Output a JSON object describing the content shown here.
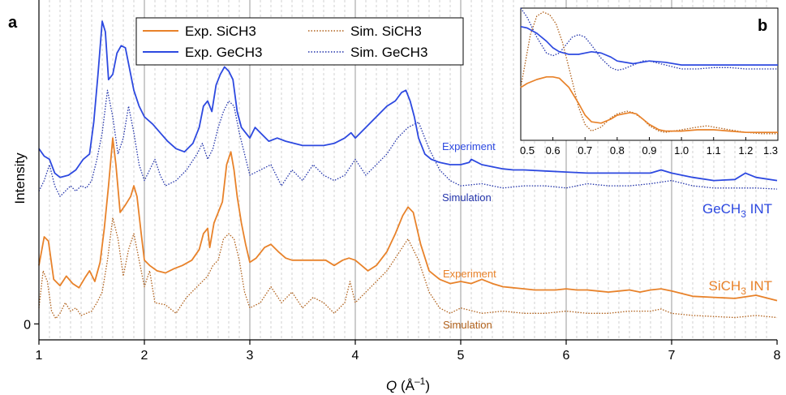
{
  "chart_data": [
    {
      "panel": "a",
      "type": "line",
      "xlabel": "Q (Å⁻¹)",
      "xlabel_main": "Q",
      "xlabel_unit": " (Å",
      "xlabel_exp": "–1",
      "xlabel_close": ")",
      "ylabel": "Intensity",
      "xlim": [
        1,
        8
      ],
      "ylim": [
        -0.15,
        3.05
      ],
      "x_ticks": [
        "1",
        "2",
        "3",
        "4",
        "5",
        "6",
        "7",
        "8"
      ],
      "y_ticks": [
        "0"
      ],
      "grid": "dashed vertical lines every 0.1 Å⁻¹; solid at 2, 3, 4, 5, 6, 7",
      "legend_position": "top-center",
      "series": [
        {
          "name": "Exp. SiCH3",
          "color": "#e8822a",
          "style": "solid",
          "x": [
            1.0,
            1.05,
            1.09,
            1.14,
            1.2,
            1.26,
            1.32,
            1.38,
            1.44,
            1.48,
            1.53,
            1.58,
            1.62,
            1.66,
            1.7,
            1.73,
            1.77,
            1.82,
            1.87,
            1.9,
            1.93,
            1.97,
            2.0,
            2.05,
            2.12,
            2.2,
            2.28,
            2.36,
            2.45,
            2.52,
            2.56,
            2.6,
            2.62,
            2.66,
            2.7,
            2.74,
            2.78,
            2.82,
            2.85,
            2.88,
            2.92,
            2.96,
            3.0,
            3.06,
            3.14,
            3.2,
            3.27,
            3.34,
            3.4,
            3.48,
            3.56,
            3.64,
            3.72,
            3.8,
            3.88,
            3.94,
            4.0,
            4.06,
            4.12,
            4.2,
            4.3,
            4.38,
            4.45,
            4.5,
            4.55,
            4.62,
            4.7,
            4.8,
            4.9,
            5.0,
            5.1,
            5.2,
            5.3,
            5.4,
            5.5,
            5.6,
            5.7,
            5.8,
            5.9,
            6.0,
            6.1,
            6.2,
            6.3,
            6.4,
            6.5,
            6.6,
            6.7,
            6.8,
            6.9,
            7.0,
            7.2,
            7.4,
            7.6,
            7.8,
            8.0
          ],
          "y": [
            0.55,
            0.82,
            0.78,
            0.42,
            0.36,
            0.45,
            0.38,
            0.34,
            0.44,
            0.5,
            0.4,
            0.58,
            0.9,
            1.3,
            1.75,
            1.5,
            1.05,
            1.12,
            1.2,
            1.3,
            1.2,
            0.85,
            0.6,
            0.55,
            0.5,
            0.48,
            0.52,
            0.55,
            0.6,
            0.7,
            0.85,
            0.9,
            0.72,
            0.95,
            1.05,
            1.15,
            1.5,
            1.62,
            1.45,
            1.2,
            0.95,
            0.75,
            0.58,
            0.62,
            0.72,
            0.75,
            0.68,
            0.62,
            0.6,
            0.6,
            0.6,
            0.6,
            0.6,
            0.55,
            0.6,
            0.62,
            0.6,
            0.55,
            0.5,
            0.55,
            0.68,
            0.85,
            1.02,
            1.1,
            1.05,
            0.75,
            0.5,
            0.42,
            0.38,
            0.4,
            0.38,
            0.42,
            0.38,
            0.35,
            0.34,
            0.33,
            0.32,
            0.32,
            0.32,
            0.33,
            0.32,
            0.32,
            0.31,
            0.3,
            0.31,
            0.32,
            0.3,
            0.32,
            0.33,
            0.31,
            0.26,
            0.25,
            0.24,
            0.27,
            0.22
          ]
        },
        {
          "name": "Exp. GeCH3",
          "color": "#2d49e0",
          "style": "solid",
          "x": [
            1.0,
            1.05,
            1.1,
            1.15,
            1.2,
            1.28,
            1.35,
            1.42,
            1.48,
            1.52,
            1.56,
            1.6,
            1.63,
            1.66,
            1.7,
            1.74,
            1.78,
            1.82,
            1.85,
            1.9,
            1.95,
            2.0,
            2.08,
            2.15,
            2.22,
            2.3,
            2.38,
            2.46,
            2.52,
            2.56,
            2.6,
            2.64,
            2.68,
            2.72,
            2.76,
            2.8,
            2.84,
            2.88,
            2.92,
            2.96,
            3.0,
            3.05,
            3.1,
            3.18,
            3.26,
            3.34,
            3.42,
            3.5,
            3.6,
            3.7,
            3.8,
            3.9,
            3.96,
            4.0,
            4.1,
            4.2,
            4.3,
            4.38,
            4.44,
            4.48,
            4.52,
            4.56,
            4.6,
            4.66,
            4.72,
            4.8,
            4.9,
            5.0,
            5.08,
            5.1,
            5.2,
            5.3,
            5.4,
            5.5,
            5.6,
            5.8,
            6.0,
            6.2,
            6.4,
            6.6,
            6.8,
            6.9,
            7.0,
            7.2,
            7.4,
            7.6,
            7.7,
            7.8,
            8.0
          ],
          "y": [
            1.65,
            1.58,
            1.55,
            1.42,
            1.38,
            1.4,
            1.45,
            1.55,
            1.6,
            1.9,
            2.35,
            2.85,
            2.75,
            2.3,
            2.35,
            2.55,
            2.62,
            2.6,
            2.45,
            2.2,
            2.05,
            1.95,
            1.88,
            1.8,
            1.72,
            1.65,
            1.62,
            1.7,
            1.85,
            2.05,
            2.1,
            2.0,
            2.25,
            2.35,
            2.42,
            2.38,
            2.3,
            2.0,
            1.85,
            1.8,
            1.75,
            1.85,
            1.8,
            1.72,
            1.75,
            1.72,
            1.7,
            1.68,
            1.68,
            1.68,
            1.7,
            1.75,
            1.8,
            1.75,
            1.85,
            1.95,
            2.05,
            2.1,
            2.18,
            2.2,
            2.1,
            1.95,
            1.75,
            1.6,
            1.55,
            1.52,
            1.5,
            1.5,
            1.52,
            1.55,
            1.5,
            1.48,
            1.46,
            1.45,
            1.45,
            1.44,
            1.43,
            1.42,
            1.42,
            1.42,
            1.42,
            1.45,
            1.42,
            1.38,
            1.35,
            1.36,
            1.42,
            1.38,
            1.35
          ]
        },
        {
          "name": "Sim. SiCH3",
          "color": "#b0601a",
          "style": "dotted",
          "x": [
            1.0,
            1.04,
            1.08,
            1.12,
            1.16,
            1.2,
            1.25,
            1.3,
            1.35,
            1.4,
            1.45,
            1.5,
            1.55,
            1.6,
            1.65,
            1.7,
            1.75,
            1.8,
            1.85,
            1.9,
            1.95,
            2.0,
            2.05,
            2.1,
            2.2,
            2.3,
            2.4,
            2.5,
            2.55,
            2.6,
            2.65,
            2.7,
            2.75,
            2.8,
            2.85,
            2.9,
            2.95,
            3.0,
            3.1,
            3.2,
            3.3,
            3.4,
            3.5,
            3.6,
            3.7,
            3.8,
            3.9,
            3.95,
            4.0,
            4.1,
            4.2,
            4.3,
            4.4,
            4.5,
            4.6,
            4.7,
            4.8,
            4.9,
            5.0,
            5.2,
            5.4,
            5.6,
            5.8,
            6.0,
            6.2,
            6.4,
            6.6,
            6.8,
            6.9,
            7.0,
            7.2,
            7.4,
            7.6,
            7.8,
            8.0
          ],
          "y": [
            0.15,
            0.5,
            0.4,
            0.12,
            0.05,
            0.1,
            0.2,
            0.12,
            0.15,
            0.08,
            0.1,
            0.12,
            0.2,
            0.3,
            0.6,
            1.0,
            0.8,
            0.45,
            0.7,
            0.85,
            0.6,
            0.35,
            0.5,
            0.2,
            0.18,
            0.1,
            0.25,
            0.35,
            0.4,
            0.45,
            0.55,
            0.6,
            0.8,
            0.85,
            0.8,
            0.6,
            0.3,
            0.15,
            0.2,
            0.35,
            0.2,
            0.3,
            0.15,
            0.25,
            0.2,
            0.1,
            0.2,
            0.4,
            0.2,
            0.3,
            0.4,
            0.5,
            0.65,
            0.8,
            0.6,
            0.3,
            0.15,
            0.1,
            0.15,
            0.1,
            0.12,
            0.1,
            0.1,
            0.12,
            0.1,
            0.1,
            0.12,
            0.12,
            0.14,
            0.1,
            0.08,
            0.07,
            0.06,
            0.08,
            0.06
          ]
        },
        {
          "name": "Sim. GeCH3",
          "color": "#2233aa",
          "style": "dotted",
          "x": [
            1.0,
            1.05,
            1.1,
            1.15,
            1.2,
            1.25,
            1.3,
            1.35,
            1.4,
            1.45,
            1.5,
            1.55,
            1.6,
            1.65,
            1.7,
            1.75,
            1.8,
            1.85,
            1.9,
            1.95,
            2.0,
            2.05,
            2.1,
            2.15,
            2.2,
            2.3,
            2.4,
            2.5,
            2.55,
            2.6,
            2.65,
            2.7,
            2.75,
            2.8,
            2.85,
            2.9,
            2.95,
            3.0,
            3.1,
            3.2,
            3.3,
            3.4,
            3.5,
            3.6,
            3.7,
            3.8,
            3.9,
            4.0,
            4.1,
            4.2,
            4.3,
            4.4,
            4.5,
            4.6,
            4.7,
            4.8,
            4.9,
            5.0,
            5.2,
            5.4,
            5.6,
            5.8,
            6.0,
            6.2,
            6.4,
            6.6,
            6.8,
            7.0,
            7.2,
            7.4,
            7.6,
            7.8,
            8.0
          ],
          "y": [
            1.25,
            1.35,
            1.5,
            1.3,
            1.2,
            1.25,
            1.3,
            1.25,
            1.3,
            1.28,
            1.35,
            1.55,
            1.8,
            2.2,
            1.95,
            1.6,
            1.75,
            2.05,
            1.8,
            1.5,
            1.35,
            1.45,
            1.55,
            1.4,
            1.3,
            1.35,
            1.45,
            1.6,
            1.7,
            1.55,
            1.65,
            1.85,
            2.0,
            2.1,
            2.05,
            1.8,
            1.6,
            1.4,
            1.45,
            1.5,
            1.3,
            1.45,
            1.35,
            1.5,
            1.4,
            1.35,
            1.4,
            1.55,
            1.4,
            1.5,
            1.6,
            1.75,
            1.85,
            1.9,
            1.65,
            1.45,
            1.35,
            1.3,
            1.32,
            1.28,
            1.3,
            1.3,
            1.28,
            1.32,
            1.3,
            1.3,
            1.32,
            1.35,
            1.3,
            1.28,
            1.28,
            1.28,
            1.27
          ]
        }
      ],
      "annotations": [
        {
          "id": "ge-exp",
          "text": "Experiment",
          "color": "#2d49e0"
        },
        {
          "id": "ge-sim",
          "text": "Simulation",
          "color": "#2233aa"
        },
        {
          "id": "si-exp",
          "text": "Experiment",
          "color": "#e8822a"
        },
        {
          "id": "si-sim",
          "text": "Simulation",
          "color": "#b0601a"
        },
        {
          "id": "ge-int",
          "text": "GeCH",
          "sub": "3",
          "tail": " INT",
          "color": "#2d49e0"
        },
        {
          "id": "si-int",
          "text": "SiCH",
          "sub": "3",
          "tail": " INT",
          "color": "#e8822a"
        }
      ]
    },
    {
      "panel": "b",
      "type": "line",
      "xlim": [
        0.5,
        1.3
      ],
      "ylim": [
        0,
        1
      ],
      "x_ticks": [
        "0.5",
        "0.6",
        "0.7",
        "0.8",
        "0.9",
        "1.0",
        "1.1",
        "1.2",
        "1.3"
      ],
      "grid": "off",
      "series": [
        {
          "name": "Exp. GeCH3",
          "color": "#2d49e0",
          "style": "solid",
          "x": [
            0.5,
            0.52,
            0.55,
            0.58,
            0.6,
            0.62,
            0.65,
            0.68,
            0.72,
            0.75,
            0.78,
            0.8,
            0.85,
            0.9,
            0.95,
            1.0,
            1.05,
            1.1,
            1.15,
            1.2,
            1.25,
            1.3
          ],
          "y": [
            0.86,
            0.85,
            0.81,
            0.75,
            0.7,
            0.67,
            0.65,
            0.65,
            0.67,
            0.66,
            0.63,
            0.6,
            0.58,
            0.6,
            0.59,
            0.57,
            0.57,
            0.57,
            0.57,
            0.57,
            0.57,
            0.57
          ]
        },
        {
          "name": "Sim. GeCH3",
          "color": "#2233aa",
          "style": "dotted",
          "x": [
            0.5,
            0.52,
            0.55,
            0.58,
            0.6,
            0.62,
            0.64,
            0.66,
            0.68,
            0.7,
            0.72,
            0.75,
            0.78,
            0.8,
            0.82,
            0.85,
            0.88,
            0.9,
            0.95,
            1.0,
            1.05,
            1.1,
            1.15,
            1.2,
            1.25,
            1.3
          ],
          "y": [
            1.0,
            0.93,
            0.78,
            0.66,
            0.64,
            0.66,
            0.72,
            0.78,
            0.8,
            0.78,
            0.72,
            0.62,
            0.55,
            0.53,
            0.54,
            0.57,
            0.6,
            0.6,
            0.57,
            0.54,
            0.54,
            0.55,
            0.55,
            0.54,
            0.54,
            0.54
          ]
        },
        {
          "name": "Exp. SiCH3",
          "color": "#e8822a",
          "style": "solid",
          "x": [
            0.5,
            0.52,
            0.55,
            0.58,
            0.6,
            0.62,
            0.65,
            0.68,
            0.7,
            0.72,
            0.75,
            0.78,
            0.8,
            0.84,
            0.86,
            0.88,
            0.9,
            0.93,
            0.95,
            1.0,
            1.05,
            1.1,
            1.15,
            1.2,
            1.25,
            1.3
          ],
          "y": [
            0.4,
            0.43,
            0.46,
            0.48,
            0.48,
            0.47,
            0.4,
            0.28,
            0.19,
            0.14,
            0.13,
            0.16,
            0.19,
            0.21,
            0.2,
            0.16,
            0.12,
            0.08,
            0.07,
            0.07,
            0.08,
            0.08,
            0.07,
            0.06,
            0.06,
            0.06
          ]
        },
        {
          "name": "Sim. SiCH3",
          "color": "#b0601a",
          "style": "dotted",
          "x": [
            0.5,
            0.53,
            0.55,
            0.57,
            0.59,
            0.61,
            0.63,
            0.66,
            0.68,
            0.7,
            0.72,
            0.75,
            0.78,
            0.8,
            0.83,
            0.85,
            0.88,
            0.9,
            0.93,
            0.95,
            1.0,
            1.05,
            1.08,
            1.1,
            1.15,
            1.2,
            1.25,
            1.3
          ],
          "y": [
            0.4,
            0.8,
            0.94,
            0.97,
            0.95,
            0.88,
            0.74,
            0.45,
            0.25,
            0.12,
            0.07,
            0.1,
            0.17,
            0.2,
            0.22,
            0.21,
            0.16,
            0.11,
            0.07,
            0.06,
            0.08,
            0.1,
            0.11,
            0.1,
            0.08,
            0.06,
            0.05,
            0.05
          ]
        }
      ]
    }
  ],
  "panel_labels": {
    "a": "a",
    "b": "b"
  }
}
